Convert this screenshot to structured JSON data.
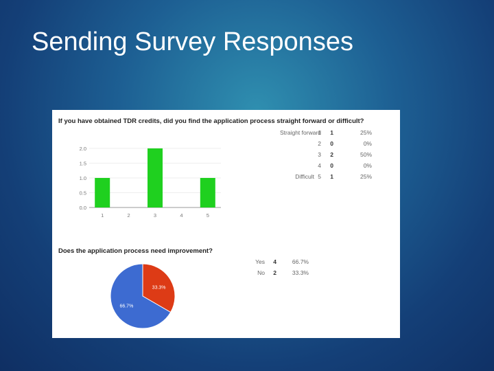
{
  "slide": {
    "title": "Sending Survey Responses"
  },
  "chart_data": [
    {
      "type": "bar",
      "title": "If you have obtained TDR credits, did you find the application process straight forward or difficult?",
      "categories": [
        "1",
        "2",
        "3",
        "4",
        "5"
      ],
      "values": [
        1,
        0,
        2,
        0,
        1
      ],
      "ylim": [
        0,
        2
      ],
      "yticks": [
        "0.0",
        "0.5",
        "1.0",
        "1.5",
        "2.0"
      ],
      "color": "#1fd01f",
      "table": [
        {
          "label": "Straight forward",
          "option": "1",
          "count": "1",
          "percent": "25%"
        },
        {
          "label": "",
          "option": "2",
          "count": "0",
          "percent": "0%"
        },
        {
          "label": "",
          "option": "3",
          "count": "2",
          "percent": "50%"
        },
        {
          "label": "",
          "option": "4",
          "count": "0",
          "percent": "0%"
        },
        {
          "label": "Difficult",
          "option": "5",
          "count": "1",
          "percent": "25%"
        }
      ]
    },
    {
      "type": "pie",
      "title": "Does the application process need improvement?",
      "slices": [
        {
          "label": "Yes",
          "value": 4,
          "percent": "66.7%",
          "color": "#3d6bd1"
        },
        {
          "label": "No",
          "value": 2,
          "percent": "33.3%",
          "color": "#dd3b16"
        }
      ]
    }
  ]
}
